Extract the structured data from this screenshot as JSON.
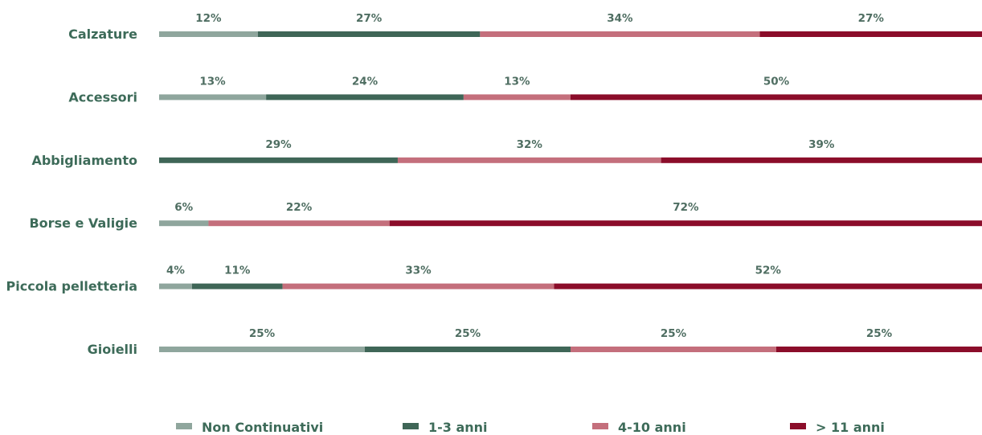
{
  "chart_data": {
    "type": "bar",
    "orientation": "horizontal",
    "stacked": true,
    "title": "",
    "xlabel": "",
    "ylabel": "",
    "xlim": [
      0,
      100
    ],
    "grid": false,
    "legend_position": "bottom",
    "categories": [
      "Calzature",
      "Accessori",
      "Abbigliamento",
      "Borse e Valigie",
      "Piccola pelletteria",
      "Gioielli"
    ],
    "series": [
      {
        "name": "Non Continuativi",
        "color": "#8fa69d",
        "values": [
          12,
          13,
          0,
          6,
          4,
          25
        ]
      },
      {
        "name": "1-3 anni",
        "color": "#3f6657",
        "values": [
          27,
          24,
          29,
          0,
          11,
          25
        ]
      },
      {
        "name": "4-10 anni",
        "color": "#c46f7c",
        "values": [
          34,
          13,
          32,
          22,
          33,
          25
        ]
      },
      {
        "name": "> 11 anni",
        "color": "#8b0d2a",
        "values": [
          27,
          50,
          39,
          72,
          52,
          25
        ]
      }
    ]
  }
}
